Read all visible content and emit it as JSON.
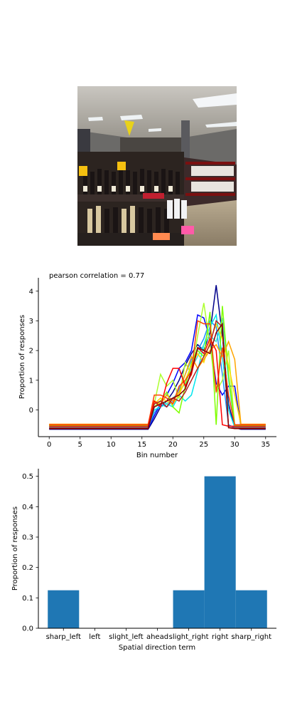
{
  "photo": {
    "description_icon": "store-shelves-photo"
  },
  "chart_data": [
    {
      "type": "line",
      "title": "pearson correlation = 0.77",
      "xlabel": "Bin number",
      "ylabel": "Proportion of responses",
      "xlim": [
        -1.75,
        36.75
      ],
      "ylim": [
        -0.9,
        4.45
      ],
      "xticks": [
        0,
        5,
        10,
        15,
        20,
        25,
        30,
        35
      ],
      "yticks": [
        0,
        1,
        2,
        3,
        4
      ],
      "grid": false,
      "x": [
        0,
        1,
        2,
        3,
        4,
        5,
        6,
        7,
        8,
        9,
        10,
        11,
        12,
        13,
        14,
        15,
        16,
        17,
        18,
        19,
        20,
        21,
        22,
        23,
        24,
        25,
        26,
        27,
        28,
        29,
        30,
        31,
        32,
        33,
        34,
        35
      ],
      "series": [
        {
          "color": "#00008b",
          "values": [
            -0.65,
            -0.65,
            -0.65,
            -0.65,
            -0.65,
            -0.65,
            -0.65,
            -0.65,
            -0.65,
            -0.65,
            -0.65,
            -0.65,
            -0.65,
            -0.65,
            -0.65,
            -0.65,
            -0.65,
            -0.3,
            0.1,
            0.3,
            0.6,
            1.0,
            1.5,
            1.9,
            2.2,
            2.0,
            2.6,
            4.2,
            2.5,
            0.2,
            -0.6,
            -0.65,
            -0.65,
            -0.65,
            -0.65,
            -0.65
          ]
        },
        {
          "color": "#0000ff",
          "values": [
            -0.62,
            -0.62,
            -0.62,
            -0.62,
            -0.62,
            -0.62,
            -0.62,
            -0.62,
            -0.62,
            -0.62,
            -0.62,
            -0.62,
            -0.62,
            -0.62,
            -0.62,
            -0.62,
            -0.62,
            -0.2,
            0.2,
            0.5,
            0.9,
            1.4,
            1.6,
            2.0,
            3.2,
            3.1,
            2.4,
            0.9,
            0.5,
            0.8,
            0.8,
            -0.55,
            -0.62,
            -0.62,
            -0.62,
            -0.62
          ]
        },
        {
          "color": "#1e90ff",
          "values": [
            -0.6,
            -0.6,
            -0.6,
            -0.6,
            -0.6,
            -0.6,
            -0.6,
            -0.6,
            -0.6,
            -0.6,
            -0.6,
            -0.6,
            -0.6,
            -0.6,
            -0.6,
            -0.6,
            -0.6,
            -0.1,
            0.2,
            0.1,
            0.3,
            0.7,
            1.2,
            1.7,
            2.0,
            2.4,
            3.0,
            2.8,
            1.2,
            -0.5,
            -0.6,
            -0.6,
            -0.6,
            -0.6,
            -0.6,
            -0.6
          ]
        },
        {
          "color": "#00e5ee",
          "values": [
            -0.58,
            -0.58,
            -0.58,
            -0.58,
            -0.58,
            -0.58,
            -0.58,
            -0.58,
            -0.58,
            -0.58,
            -0.58,
            -0.58,
            -0.58,
            -0.58,
            -0.58,
            -0.58,
            -0.58,
            0.0,
            0.1,
            0.2,
            0.1,
            0.5,
            0.3,
            0.5,
            1.3,
            2.2,
            2.8,
            3.2,
            1.8,
            0.0,
            -0.58,
            -0.58,
            -0.58,
            -0.58,
            -0.58,
            -0.58
          ]
        },
        {
          "color": "#40e0d0",
          "values": [
            -0.56,
            -0.56,
            -0.56,
            -0.56,
            -0.56,
            -0.56,
            -0.56,
            -0.56,
            -0.56,
            -0.56,
            -0.56,
            -0.56,
            -0.56,
            -0.56,
            -0.56,
            -0.56,
            -0.56,
            0.1,
            0.3,
            0.2,
            0.4,
            0.6,
            0.9,
            1.4,
            1.8,
            2.2,
            2.5,
            2.3,
            3.1,
            1.0,
            -0.56,
            -0.56,
            -0.56,
            -0.56,
            -0.56,
            -0.56
          ]
        },
        {
          "color": "#adff2f",
          "values": [
            -0.54,
            -0.54,
            -0.54,
            -0.54,
            -0.54,
            -0.54,
            -0.54,
            -0.54,
            -0.54,
            -0.54,
            -0.54,
            -0.54,
            -0.54,
            -0.54,
            -0.54,
            -0.54,
            -0.54,
            0.2,
            1.2,
            0.8,
            1.0,
            0.4,
            1.6,
            1.2,
            2.5,
            3.6,
            2.2,
            0.6,
            1.0,
            2.0,
            -0.54,
            -0.54,
            -0.54,
            -0.54,
            -0.54,
            -0.54
          ]
        },
        {
          "color": "#7fff00",
          "values": [
            -0.52,
            -0.52,
            -0.52,
            -0.52,
            -0.52,
            -0.52,
            -0.52,
            -0.52,
            -0.52,
            -0.52,
            -0.52,
            -0.52,
            -0.52,
            -0.52,
            -0.52,
            -0.52,
            -0.52,
            0.1,
            0.3,
            0.6,
            0.1,
            -0.1,
            0.8,
            1.6,
            2.0,
            1.8,
            3.3,
            -0.5,
            3.5,
            1.2,
            -0.52,
            -0.52,
            -0.52,
            -0.52,
            -0.52,
            -0.52
          ]
        },
        {
          "color": "#ffd700",
          "values": [
            -0.5,
            -0.5,
            -0.5,
            -0.5,
            -0.5,
            -0.5,
            -0.5,
            -0.5,
            -0.5,
            -0.5,
            -0.5,
            -0.5,
            -0.5,
            -0.5,
            -0.5,
            -0.5,
            -0.5,
            0.2,
            0.4,
            0.3,
            0.2,
            0.5,
            1.0,
            1.5,
            1.9,
            1.6,
            2.3,
            2.9,
            2.4,
            1.5,
            0.5,
            -0.5,
            -0.5,
            -0.5,
            -0.5,
            -0.5
          ]
        },
        {
          "color": "#ffa500",
          "values": [
            -0.48,
            -0.48,
            -0.48,
            -0.48,
            -0.48,
            -0.48,
            -0.48,
            -0.48,
            -0.48,
            -0.48,
            -0.48,
            -0.48,
            -0.48,
            -0.48,
            -0.48,
            -0.48,
            -0.48,
            0.3,
            0.2,
            0.5,
            0.3,
            0.6,
            1.2,
            1.8,
            1.4,
            1.7,
            2.0,
            2.2,
            1.8,
            2.3,
            1.7,
            -0.48,
            -0.48,
            -0.48,
            -0.48,
            -0.48
          ]
        },
        {
          "color": "#ff4500",
          "values": [
            -0.5,
            -0.5,
            -0.5,
            -0.5,
            -0.5,
            -0.5,
            -0.5,
            -0.5,
            -0.5,
            -0.5,
            -0.5,
            -0.5,
            -0.5,
            -0.5,
            -0.5,
            -0.5,
            -0.5,
            0.5,
            0.5,
            0.4,
            0.2,
            0.8,
            1.0,
            1.3,
            3.0,
            2.9,
            2.9,
            0.6,
            2.1,
            0.5,
            -0.5,
            -0.5,
            -0.5,
            -0.5,
            -0.5,
            -0.5
          ]
        },
        {
          "color": "#ff0000",
          "values": [
            -0.55,
            -0.55,
            -0.55,
            -0.55,
            -0.55,
            -0.55,
            -0.55,
            -0.55,
            -0.55,
            -0.55,
            -0.55,
            -0.55,
            -0.55,
            -0.55,
            -0.55,
            -0.55,
            -0.55,
            0.3,
            0.1,
            0.9,
            1.4,
            1.4,
            0.8,
            1.2,
            2.1,
            1.9,
            2.4,
            2.0,
            -0.5,
            -0.55,
            -0.55,
            -0.55,
            -0.55,
            -0.55,
            -0.55,
            -0.55
          ]
        },
        {
          "color": "#b22222",
          "values": [
            -0.6,
            -0.6,
            -0.6,
            -0.6,
            -0.6,
            -0.6,
            -0.6,
            -0.6,
            -0.6,
            -0.6,
            -0.6,
            -0.6,
            -0.6,
            -0.6,
            -0.6,
            -0.6,
            -0.6,
            0.2,
            0.3,
            0.1,
            0.4,
            0.3,
            0.6,
            1.0,
            1.4,
            1.8,
            2.2,
            3.0,
            2.8,
            -0.6,
            -0.6,
            -0.6,
            -0.6,
            -0.6,
            -0.6,
            -0.6
          ]
        },
        {
          "color": "#8b0000",
          "values": [
            -0.63,
            -0.63,
            -0.63,
            -0.63,
            -0.63,
            -0.63,
            -0.63,
            -0.63,
            -0.63,
            -0.63,
            -0.63,
            -0.63,
            -0.63,
            -0.63,
            -0.63,
            -0.63,
            -0.63,
            0.1,
            0.2,
            0.3,
            0.4,
            0.5,
            0.7,
            1.3,
            2.1,
            2.0,
            1.9,
            2.6,
            2.9,
            -0.6,
            -0.63,
            -0.63,
            -0.63,
            -0.63,
            -0.63,
            -0.63
          ]
        }
      ]
    },
    {
      "type": "bar",
      "xlabel": "Spatial direction term",
      "ylabel": "Proportion of responses",
      "categories": [
        "sharp_left",
        "left",
        "slight_left",
        "ahead",
        "slight_right",
        "right",
        "sharp_right"
      ],
      "values": [
        0.125,
        0.0,
        0.0,
        0.0,
        0.125,
        0.5,
        0.125
      ],
      "ylim": [
        0,
        0.525
      ],
      "yticks": [
        "0.0",
        "0.1",
        "0.2",
        "0.3",
        "0.4",
        "0.5"
      ],
      "bar_color": "#1f77b4",
      "grid": false
    }
  ]
}
